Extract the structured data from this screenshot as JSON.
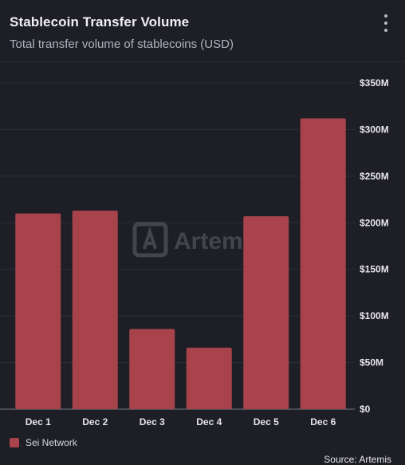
{
  "header": {
    "title": "Stablecoin Transfer Volume",
    "subtitle": "Total transfer volume of stablecoins (USD)"
  },
  "watermark": {
    "text": "Artemis"
  },
  "chart_data": {
    "type": "bar",
    "title": "Stablecoin Transfer Volume",
    "subtitle": "Total transfer volume of stablecoins (USD)",
    "categories": [
      "Dec 1",
      "Dec 2",
      "Dec 3",
      "Dec 4",
      "Dec 5",
      "Dec 6"
    ],
    "series": [
      {
        "name": "Sei Network",
        "values": [
          210,
          213,
          86,
          66,
          207,
          312
        ],
        "color": "#a8434b"
      }
    ],
    "ylim": [
      0,
      350
    ],
    "yticks": [
      0,
      50,
      100,
      150,
      200,
      250,
      300,
      350
    ],
    "ytick_labels": [
      "$0",
      "$50M",
      "$100M",
      "$150M",
      "$200M",
      "$250M",
      "$300M",
      "$350M"
    ],
    "y_unit": "USD millions",
    "yaxis_position": "right",
    "grid": true,
    "legend_position": "bottom-left"
  },
  "legend": {
    "items": [
      {
        "label": "Sei Network",
        "color": "#a8434b"
      }
    ]
  },
  "footer": {
    "source": "Source: Artemis"
  },
  "colors": {
    "background": "#1d1e26",
    "bar": "#a8434b",
    "grid": "#2e2f39"
  }
}
